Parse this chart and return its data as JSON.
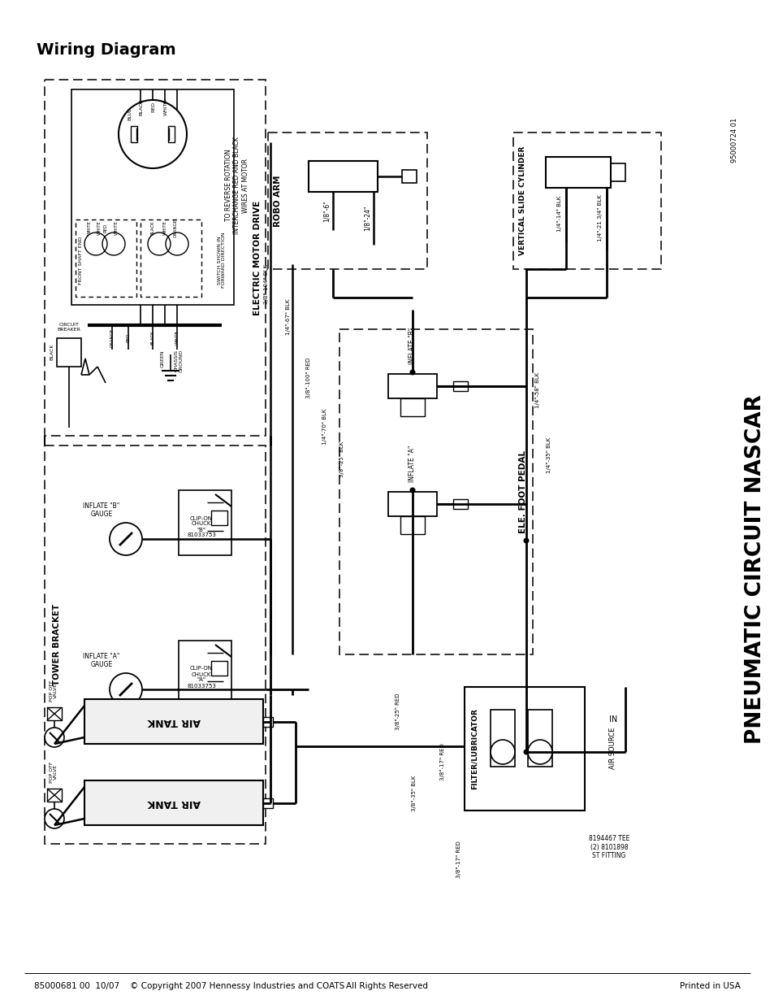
{
  "title": "Wiring Diagram",
  "footer_left": "85000681 00  10/07    © Copyright 2007 Hennessy Industries and COATS",
  "footer_center": "All Rights Reserved",
  "footer_right": "Printed in USA",
  "footer_fontsize": 7.5,
  "title_fontsize": 13,
  "bg_color": "#ffffff",
  "line_color": "#000000",
  "part_num_top_right": "95000724 01",
  "main_title_rotated": "PNEUMATIC CIRCUIT NASCAR",
  "section_electric_motor": "ELECTRIC MOTOR DRIVE",
  "section_robo_arm": "ROBO ARM",
  "section_vert_slide": "VERTICAL SLIDE CYLINDER",
  "section_tower": "TOWER BRACKET",
  "section_ele_foot": "ELE. FOOT PEDAL",
  "section_filter": "FILTER/LUBRICATOR"
}
